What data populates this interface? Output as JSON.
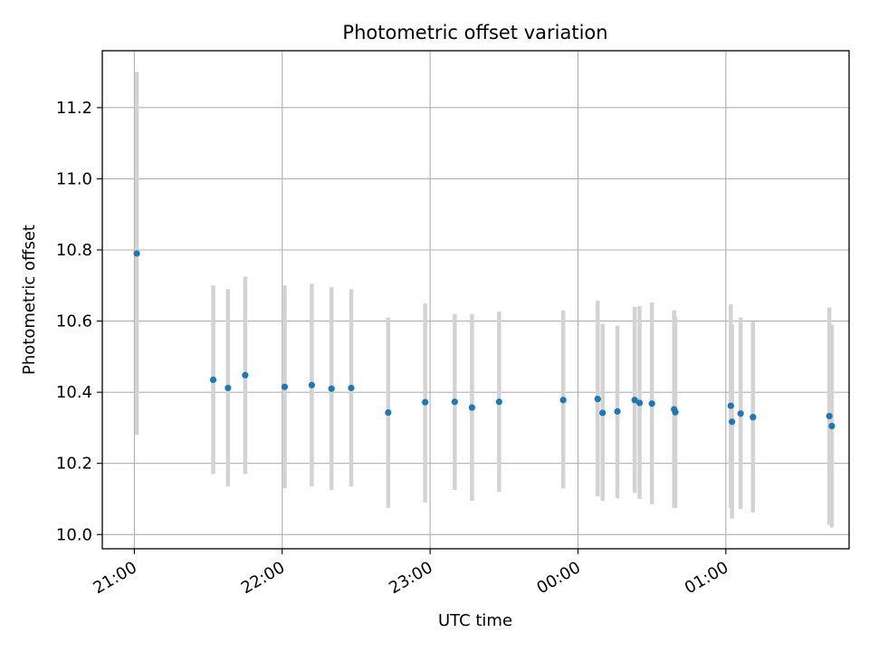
{
  "chart_data": {
    "type": "scatter",
    "title": "Photometric offset variation",
    "xlabel": "UTC time",
    "ylabel": "Photometric offset",
    "x_ticks": [
      "21:00",
      "22:00",
      "23:00",
      "00:00",
      "01:00"
    ],
    "x_tick_minutes": [
      0,
      60,
      120,
      180,
      240
    ],
    "xlim_minutes": [
      -13,
      290
    ],
    "y_ticks": [
      "10.0",
      "10.2",
      "10.4",
      "10.6",
      "10.8",
      "11.0",
      "11.2"
    ],
    "y_tick_values": [
      10.0,
      10.2,
      10.4,
      10.6,
      10.8,
      11.0,
      11.2
    ],
    "ylim": [
      9.96,
      11.36
    ],
    "grid": true,
    "colors": {
      "point": "#1f77b4",
      "errorbar": "#d3d3d3",
      "grid": "#b0b0b0"
    },
    "points": [
      {
        "t": 1,
        "y": 10.79,
        "lo": 10.28,
        "hi": 11.3
      },
      {
        "t": 32,
        "y": 10.435,
        "lo": 10.17,
        "hi": 10.7
      },
      {
        "t": 38,
        "y": 10.412,
        "lo": 10.135,
        "hi": 10.69
      },
      {
        "t": 45,
        "y": 10.448,
        "lo": 10.17,
        "hi": 10.725
      },
      {
        "t": 61,
        "y": 10.415,
        "lo": 10.13,
        "hi": 10.7
      },
      {
        "t": 72,
        "y": 10.42,
        "lo": 10.135,
        "hi": 10.705
      },
      {
        "t": 80,
        "y": 10.41,
        "lo": 10.125,
        "hi": 10.695
      },
      {
        "t": 88,
        "y": 10.412,
        "lo": 10.135,
        "hi": 10.69
      },
      {
        "t": 103,
        "y": 10.343,
        "lo": 10.075,
        "hi": 10.61
      },
      {
        "t": 118,
        "y": 10.372,
        "lo": 10.09,
        "hi": 10.65
      },
      {
        "t": 130,
        "y": 10.373,
        "lo": 10.125,
        "hi": 10.62
      },
      {
        "t": 137,
        "y": 10.357,
        "lo": 10.095,
        "hi": 10.62
      },
      {
        "t": 148,
        "y": 10.373,
        "lo": 10.12,
        "hi": 10.627
      },
      {
        "t": 174,
        "y": 10.378,
        "lo": 10.13,
        "hi": 10.63
      },
      {
        "t": 188,
        "y": 10.381,
        "lo": 10.107,
        "hi": 10.657
      },
      {
        "t": 190,
        "y": 10.342,
        "lo": 10.095,
        "hi": 10.592
      },
      {
        "t": 196,
        "y": 10.346,
        "lo": 10.102,
        "hi": 10.587
      },
      {
        "t": 203,
        "y": 10.378,
        "lo": 10.117,
        "hi": 10.64
      },
      {
        "t": 205,
        "y": 10.37,
        "lo": 10.1,
        "hi": 10.642
      },
      {
        "t": 210,
        "y": 10.368,
        "lo": 10.085,
        "hi": 10.652
      },
      {
        "t": 219,
        "y": 10.352,
        "lo": 10.075,
        "hi": 10.63
      },
      {
        "t": 219.5,
        "y": 10.344,
        "lo": 10.075,
        "hi": 10.613
      },
      {
        "t": 242,
        "y": 10.362,
        "lo": 10.075,
        "hi": 10.647
      },
      {
        "t": 242.5,
        "y": 10.317,
        "lo": 10.045,
        "hi": 10.59
      },
      {
        "t": 246,
        "y": 10.34,
        "lo": 10.072,
        "hi": 10.61
      },
      {
        "t": 251,
        "y": 10.33,
        "lo": 10.062,
        "hi": 10.598
      },
      {
        "t": 282,
        "y": 10.333,
        "lo": 10.027,
        "hi": 10.638
      },
      {
        "t": 283,
        "y": 10.305,
        "lo": 10.02,
        "hi": 10.59
      }
    ]
  }
}
